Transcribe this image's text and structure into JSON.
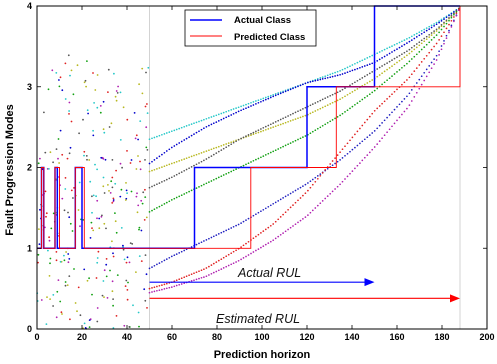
{
  "chart_data": {
    "type": "line",
    "title": "",
    "xlabel": "Prediction horizon",
    "ylabel": "Fault Progression Modes",
    "xlim": [
      0,
      200
    ],
    "ylim": [
      0,
      4
    ],
    "xticks": [
      0,
      20,
      40,
      60,
      80,
      100,
      120,
      140,
      160,
      180,
      200
    ],
    "yticks": [
      0,
      1,
      2,
      3,
      4
    ],
    "grid": false,
    "legend_position": "top-center",
    "reference_lines_x": [
      50,
      188
    ],
    "series": [
      {
        "name": "Actual Class",
        "color": "#0000ff",
        "style": "solid",
        "points": [
          [
            0,
            1
          ],
          [
            2,
            1
          ],
          [
            2,
            2
          ],
          [
            3,
            2
          ],
          [
            3,
            1
          ],
          [
            8,
            1
          ],
          [
            8,
            2
          ],
          [
            9,
            2
          ],
          [
            9,
            1
          ],
          [
            17,
            1
          ],
          [
            17,
            2
          ],
          [
            20,
            2
          ],
          [
            20,
            1
          ],
          [
            70,
            1
          ],
          [
            70,
            2
          ],
          [
            120,
            2
          ],
          [
            120,
            3
          ],
          [
            150,
            3
          ],
          [
            150,
            4
          ],
          [
            188,
            4
          ]
        ]
      },
      {
        "name": "Predicted Class",
        "color": "#ff0000",
        "style": "solid-thin",
        "points": [
          [
            0,
            1
          ],
          [
            2,
            1
          ],
          [
            2,
            2
          ],
          [
            3,
            2
          ],
          [
            3,
            1
          ],
          [
            8,
            1
          ],
          [
            8,
            2
          ],
          [
            10,
            2
          ],
          [
            10,
            1
          ],
          [
            17,
            1
          ],
          [
            17,
            2
          ],
          [
            21,
            2
          ],
          [
            21,
            1
          ],
          [
            95,
            1
          ],
          [
            95,
            2
          ],
          [
            133,
            2
          ],
          [
            133,
            3
          ],
          [
            188,
            3
          ],
          [
            188,
            4
          ]
        ]
      }
    ],
    "trajectories": [
      {
        "color": "#25c8c8",
        "points": [
          [
            50,
            2.35
          ],
          [
            60,
            2.45
          ],
          [
            75,
            2.6
          ],
          [
            90,
            2.75
          ],
          [
            105,
            2.9
          ],
          [
            120,
            3.05
          ],
          [
            135,
            3.2
          ],
          [
            150,
            3.4
          ],
          [
            165,
            3.6
          ],
          [
            178,
            3.8
          ],
          [
            188,
            3.98
          ]
        ]
      },
      {
        "color": "#0000cc",
        "points": [
          [
            50,
            2.05
          ],
          [
            60,
            2.25
          ],
          [
            75,
            2.5
          ],
          [
            90,
            2.7
          ],
          [
            105,
            2.88
          ],
          [
            120,
            3.05
          ],
          [
            135,
            3.15
          ],
          [
            150,
            3.3
          ],
          [
            165,
            3.55
          ],
          [
            178,
            3.78
          ],
          [
            188,
            3.98
          ]
        ]
      },
      {
        "color": "#b8b820",
        "points": [
          [
            50,
            1.95
          ],
          [
            60,
            2.05
          ],
          [
            75,
            2.2
          ],
          [
            90,
            2.35
          ],
          [
            105,
            2.5
          ],
          [
            120,
            2.65
          ],
          [
            135,
            2.85
          ],
          [
            150,
            3.1
          ],
          [
            165,
            3.4
          ],
          [
            178,
            3.7
          ],
          [
            188,
            3.98
          ]
        ]
      },
      {
        "color": "#555555",
        "points": [
          [
            50,
            1.75
          ],
          [
            60,
            1.88
          ],
          [
            75,
            2.1
          ],
          [
            90,
            2.35
          ],
          [
            105,
            2.55
          ],
          [
            120,
            2.75
          ],
          [
            135,
            2.95
          ],
          [
            150,
            3.2
          ],
          [
            165,
            3.45
          ],
          [
            178,
            3.72
          ],
          [
            188,
            3.98
          ]
        ]
      },
      {
        "color": "#11a011",
        "points": [
          [
            50,
            1.45
          ],
          [
            60,
            1.6
          ],
          [
            75,
            1.8
          ],
          [
            90,
            2.0
          ],
          [
            105,
            2.2
          ],
          [
            120,
            2.4
          ],
          [
            135,
            2.65
          ],
          [
            150,
            2.95
          ],
          [
            165,
            3.3
          ],
          [
            178,
            3.65
          ],
          [
            188,
            3.98
          ]
        ]
      },
      {
        "color": "#2020c0",
        "points": [
          [
            50,
            0.75
          ],
          [
            60,
            0.9
          ],
          [
            75,
            1.1
          ],
          [
            90,
            1.3
          ],
          [
            105,
            1.55
          ],
          [
            120,
            1.8
          ],
          [
            135,
            2.1
          ],
          [
            150,
            2.45
          ],
          [
            165,
            2.9
          ],
          [
            178,
            3.4
          ],
          [
            188,
            3.98
          ]
        ]
      },
      {
        "color": "#e02020",
        "points": [
          [
            50,
            0.5
          ],
          [
            60,
            0.58
          ],
          [
            75,
            0.75
          ],
          [
            90,
            1.0
          ],
          [
            105,
            1.3
          ],
          [
            120,
            1.7
          ],
          [
            135,
            2.2
          ],
          [
            150,
            2.7
          ],
          [
            165,
            3.1
          ],
          [
            178,
            3.55
          ],
          [
            188,
            3.98
          ]
        ]
      },
      {
        "color": "#b020b0",
        "points": [
          [
            50,
            0.45
          ],
          [
            60,
            0.52
          ],
          [
            75,
            0.65
          ],
          [
            90,
            0.85
          ],
          [
            105,
            1.1
          ],
          [
            120,
            1.4
          ],
          [
            135,
            1.8
          ],
          [
            150,
            2.25
          ],
          [
            165,
            2.75
          ],
          [
            178,
            3.35
          ],
          [
            188,
            3.98
          ]
        ]
      }
    ],
    "scatter_region": {
      "xlim": [
        0,
        50
      ],
      "ylim": [
        0,
        3.7
      ],
      "colors": [
        "#25c8c8",
        "#0000cc",
        "#b8b820",
        "#555555",
        "#11a011",
        "#e02020",
        "#b020b0"
      ]
    },
    "annotations": [
      {
        "text": "Actual RUL",
        "arrow_from_x": 50,
        "arrow_to_x": 150,
        "arrow_y": 0.58,
        "color": "#0000ff"
      },
      {
        "text": "Estimated RUL",
        "arrow_from_x": 50,
        "arrow_to_x": 188,
        "arrow_y": 0.38,
        "color": "#ff0000"
      }
    ]
  }
}
